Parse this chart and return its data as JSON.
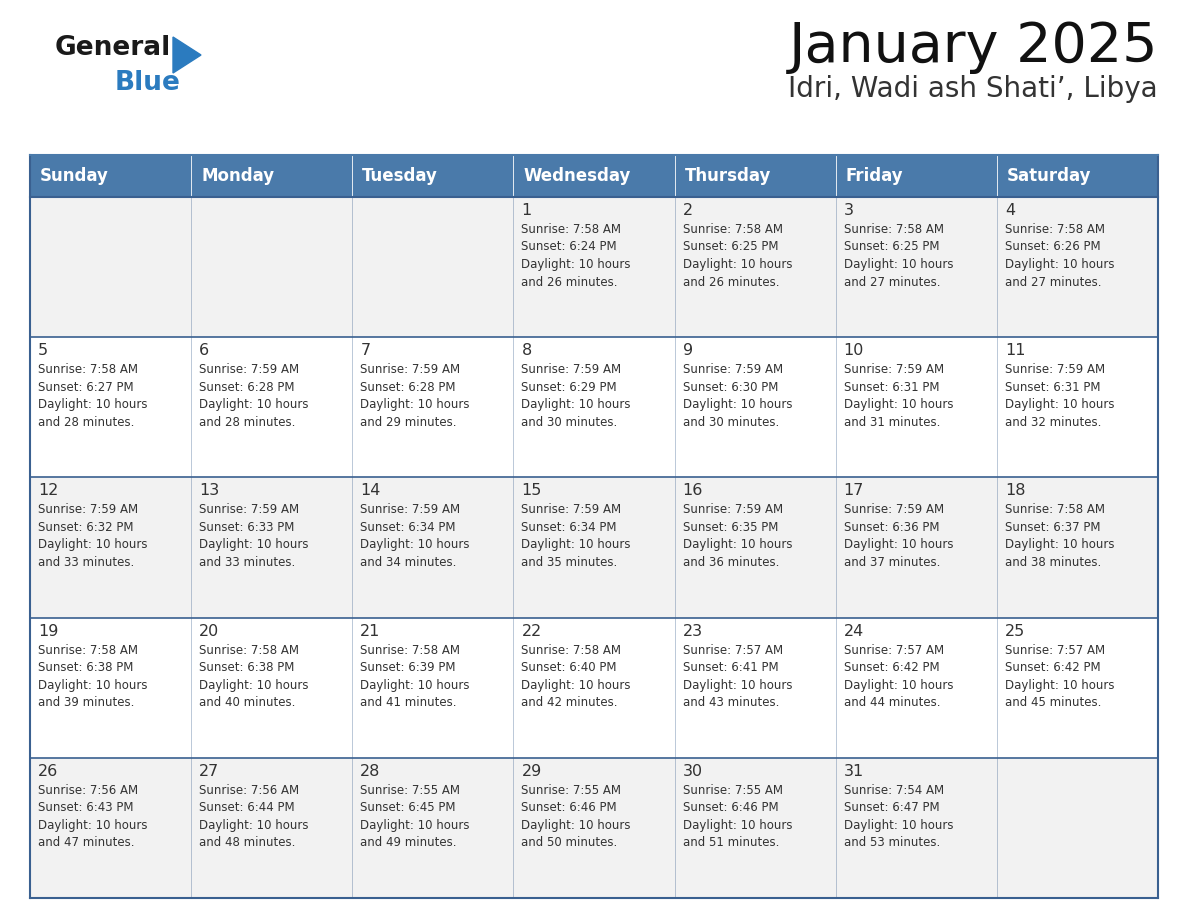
{
  "title": "January 2025",
  "subtitle": "Idri, Wadi ash Shati’, Libya",
  "header_color": "#4a7aaa",
  "header_text_color": "#ffffff",
  "row_bg_odd": "#f2f2f2",
  "row_bg_even": "#ffffff",
  "border_color": "#3a6090",
  "text_color": "#333333",
  "day_names": [
    "Sunday",
    "Monday",
    "Tuesday",
    "Wednesday",
    "Thursday",
    "Friday",
    "Saturday"
  ],
  "weeks": [
    [
      {
        "day": "",
        "info": ""
      },
      {
        "day": "",
        "info": ""
      },
      {
        "day": "",
        "info": ""
      },
      {
        "day": "1",
        "info": "Sunrise: 7:58 AM\nSunset: 6:24 PM\nDaylight: 10 hours\nand 26 minutes."
      },
      {
        "day": "2",
        "info": "Sunrise: 7:58 AM\nSunset: 6:25 PM\nDaylight: 10 hours\nand 26 minutes."
      },
      {
        "day": "3",
        "info": "Sunrise: 7:58 AM\nSunset: 6:25 PM\nDaylight: 10 hours\nand 27 minutes."
      },
      {
        "day": "4",
        "info": "Sunrise: 7:58 AM\nSunset: 6:26 PM\nDaylight: 10 hours\nand 27 minutes."
      }
    ],
    [
      {
        "day": "5",
        "info": "Sunrise: 7:58 AM\nSunset: 6:27 PM\nDaylight: 10 hours\nand 28 minutes."
      },
      {
        "day": "6",
        "info": "Sunrise: 7:59 AM\nSunset: 6:28 PM\nDaylight: 10 hours\nand 28 minutes."
      },
      {
        "day": "7",
        "info": "Sunrise: 7:59 AM\nSunset: 6:28 PM\nDaylight: 10 hours\nand 29 minutes."
      },
      {
        "day": "8",
        "info": "Sunrise: 7:59 AM\nSunset: 6:29 PM\nDaylight: 10 hours\nand 30 minutes."
      },
      {
        "day": "9",
        "info": "Sunrise: 7:59 AM\nSunset: 6:30 PM\nDaylight: 10 hours\nand 30 minutes."
      },
      {
        "day": "10",
        "info": "Sunrise: 7:59 AM\nSunset: 6:31 PM\nDaylight: 10 hours\nand 31 minutes."
      },
      {
        "day": "11",
        "info": "Sunrise: 7:59 AM\nSunset: 6:31 PM\nDaylight: 10 hours\nand 32 minutes."
      }
    ],
    [
      {
        "day": "12",
        "info": "Sunrise: 7:59 AM\nSunset: 6:32 PM\nDaylight: 10 hours\nand 33 minutes."
      },
      {
        "day": "13",
        "info": "Sunrise: 7:59 AM\nSunset: 6:33 PM\nDaylight: 10 hours\nand 33 minutes."
      },
      {
        "day": "14",
        "info": "Sunrise: 7:59 AM\nSunset: 6:34 PM\nDaylight: 10 hours\nand 34 minutes."
      },
      {
        "day": "15",
        "info": "Sunrise: 7:59 AM\nSunset: 6:34 PM\nDaylight: 10 hours\nand 35 minutes."
      },
      {
        "day": "16",
        "info": "Sunrise: 7:59 AM\nSunset: 6:35 PM\nDaylight: 10 hours\nand 36 minutes."
      },
      {
        "day": "17",
        "info": "Sunrise: 7:59 AM\nSunset: 6:36 PM\nDaylight: 10 hours\nand 37 minutes."
      },
      {
        "day": "18",
        "info": "Sunrise: 7:58 AM\nSunset: 6:37 PM\nDaylight: 10 hours\nand 38 minutes."
      }
    ],
    [
      {
        "day": "19",
        "info": "Sunrise: 7:58 AM\nSunset: 6:38 PM\nDaylight: 10 hours\nand 39 minutes."
      },
      {
        "day": "20",
        "info": "Sunrise: 7:58 AM\nSunset: 6:38 PM\nDaylight: 10 hours\nand 40 minutes."
      },
      {
        "day": "21",
        "info": "Sunrise: 7:58 AM\nSunset: 6:39 PM\nDaylight: 10 hours\nand 41 minutes."
      },
      {
        "day": "22",
        "info": "Sunrise: 7:58 AM\nSunset: 6:40 PM\nDaylight: 10 hours\nand 42 minutes."
      },
      {
        "day": "23",
        "info": "Sunrise: 7:57 AM\nSunset: 6:41 PM\nDaylight: 10 hours\nand 43 minutes."
      },
      {
        "day": "24",
        "info": "Sunrise: 7:57 AM\nSunset: 6:42 PM\nDaylight: 10 hours\nand 44 minutes."
      },
      {
        "day": "25",
        "info": "Sunrise: 7:57 AM\nSunset: 6:42 PM\nDaylight: 10 hours\nand 45 minutes."
      }
    ],
    [
      {
        "day": "26",
        "info": "Sunrise: 7:56 AM\nSunset: 6:43 PM\nDaylight: 10 hours\nand 47 minutes."
      },
      {
        "day": "27",
        "info": "Sunrise: 7:56 AM\nSunset: 6:44 PM\nDaylight: 10 hours\nand 48 minutes."
      },
      {
        "day": "28",
        "info": "Sunrise: 7:55 AM\nSunset: 6:45 PM\nDaylight: 10 hours\nand 49 minutes."
      },
      {
        "day": "29",
        "info": "Sunrise: 7:55 AM\nSunset: 6:46 PM\nDaylight: 10 hours\nand 50 minutes."
      },
      {
        "day": "30",
        "info": "Sunrise: 7:55 AM\nSunset: 6:46 PM\nDaylight: 10 hours\nand 51 minutes."
      },
      {
        "day": "31",
        "info": "Sunrise: 7:54 AM\nSunset: 6:47 PM\nDaylight: 10 hours\nand 53 minutes."
      },
      {
        "day": "",
        "info": ""
      }
    ]
  ],
  "logo_text_general": "General",
  "logo_text_blue": "Blue",
  "logo_color_general": "#1a1a1a",
  "logo_color_blue": "#2b7bbf",
  "logo_triangle_color": "#2b7bbf",
  "figsize": [
    11.88,
    9.18
  ],
  "dpi": 100
}
